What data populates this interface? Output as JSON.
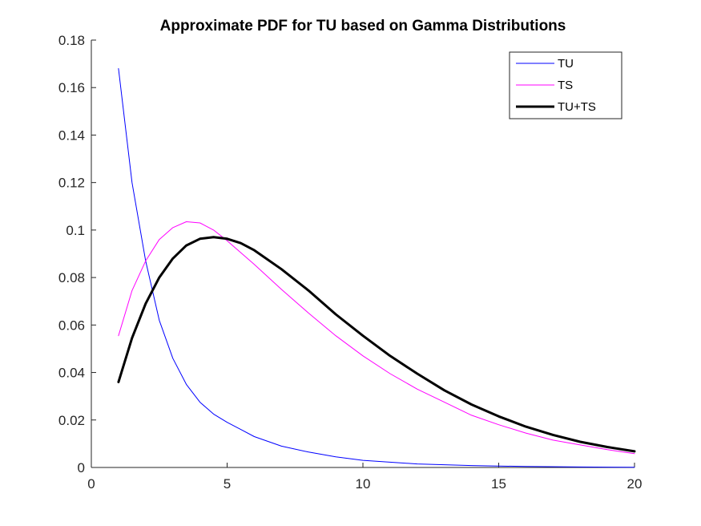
{
  "chart_data": {
    "type": "line",
    "title": "Approximate PDF for TU based on Gamma Distributions",
    "xlabel": "",
    "ylabel": "",
    "xlim": [
      0,
      20
    ],
    "ylim": [
      0,
      0.18
    ],
    "x_ticks": [
      0,
      5,
      10,
      15,
      20
    ],
    "y_ticks": [
      0,
      0.02,
      0.04,
      0.06,
      0.08,
      0.1,
      0.12,
      0.14,
      0.16,
      0.18
    ],
    "x_tick_labels": [
      "0",
      "5",
      "10",
      "15",
      "20"
    ],
    "y_tick_labels": [
      "0",
      "0.02",
      "0.04",
      "0.06",
      "0.08",
      "0.1",
      "0.12",
      "0.14",
      "0.16",
      "0.18"
    ],
    "grid": false,
    "legend_position": "top-right",
    "series": [
      {
        "name": "TU",
        "color": "#0000ff",
        "width": "thin",
        "x": [
          1,
          1.5,
          2,
          2.5,
          3,
          3.5,
          4,
          4.5,
          5,
          5.5,
          6,
          7,
          8,
          9,
          10,
          12,
          14,
          16,
          18,
          20
        ],
        "y": [
          0.168,
          0.12,
          0.087,
          0.062,
          0.046,
          0.035,
          0.0275,
          0.0225,
          0.019,
          0.016,
          0.013,
          0.009,
          0.0065,
          0.0045,
          0.003,
          0.0015,
          0.0008,
          0.0004,
          0.0002,
          0.0001
        ]
      },
      {
        "name": "TS",
        "color": "#ff00ff",
        "width": "thin",
        "x": [
          1,
          1.5,
          2,
          2.5,
          3,
          3.5,
          4,
          4.5,
          5,
          6,
          7,
          8,
          9,
          10,
          11,
          12,
          13,
          14,
          15,
          16,
          17,
          18,
          19,
          20
        ],
        "y": [
          0.0555,
          0.0745,
          0.087,
          0.096,
          0.101,
          0.1035,
          0.103,
          0.1,
          0.0955,
          0.0855,
          0.075,
          0.065,
          0.0555,
          0.047,
          0.0395,
          0.033,
          0.0275,
          0.022,
          0.018,
          0.0145,
          0.0115,
          0.0095,
          0.0075,
          0.0058
        ]
      },
      {
        "name": "TU+TS",
        "color": "#000000",
        "width": "thick",
        "x": [
          1,
          1.5,
          2,
          2.5,
          3,
          3.5,
          4,
          4.5,
          5,
          5.5,
          6,
          7,
          8,
          9,
          10,
          11,
          12,
          13,
          14,
          15,
          16,
          17,
          18,
          19,
          20
        ],
        "y": [
          0.036,
          0.0545,
          0.069,
          0.08,
          0.088,
          0.0935,
          0.0963,
          0.097,
          0.0963,
          0.0945,
          0.0915,
          0.0835,
          0.0745,
          0.0645,
          0.0555,
          0.047,
          0.0395,
          0.0325,
          0.0265,
          0.0215,
          0.0172,
          0.0137,
          0.0108,
          0.0086,
          0.0068
        ]
      }
    ]
  }
}
